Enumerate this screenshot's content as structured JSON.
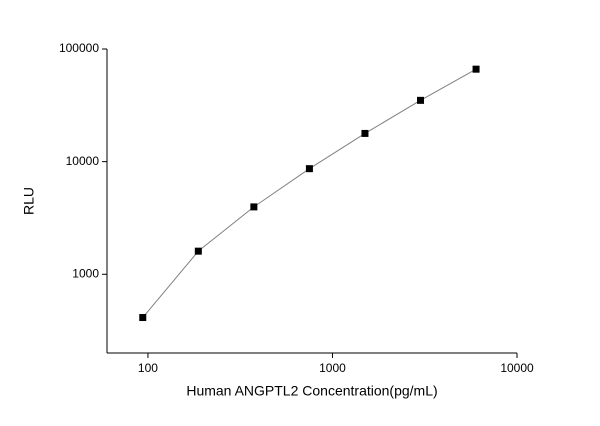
{
  "chart_data": {
    "type": "line",
    "x_label": "Human ANGPTL2 Concentration(pg/mL)",
    "y_label": "RLU",
    "xscale": "log",
    "yscale": "log",
    "series": [
      {
        "x": [
          93.75,
          187.5,
          375,
          750,
          1500,
          3000,
          6000
        ],
        "values": [
          413,
          1604,
          3964,
          8660,
          17800,
          35000,
          66200
        ],
        "color": "#000000",
        "line_color": "#808080"
      }
    ],
    "xlim": [
      60,
      10000
    ],
    "xticks": [
      100,
      1000,
      10000
    ],
    "ylim": [
      200,
      100000
    ],
    "yticks": [
      1000,
      10000,
      100000
    ]
  }
}
